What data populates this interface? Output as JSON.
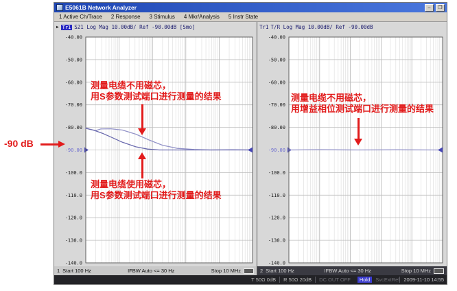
{
  "window": {
    "title": "E5061B Network Analyzer",
    "minimize_label": "–",
    "restore_label": "❐"
  },
  "menu": {
    "items": [
      "1 Active Ch/Trace",
      "2 Response",
      "3 Stimulus",
      "4 Mkr/Analysis",
      "5 Instr State"
    ]
  },
  "channels": [
    {
      "header": {
        "marker": "▶",
        "trace": "Tr1",
        "text": "S21 Log Mag 10.00dB/ Ref -90.00dB [Smo]"
      },
      "status": {
        "num": "1",
        "start": "Start 100 Hz",
        "ifbw": "IFBW Auto <= 30 Hz",
        "stop": "Stop 10 MHz"
      }
    },
    {
      "header": {
        "trace": "Tr1",
        "text": "T/R Log Mag 10.00dB/ Ref -90.00dB"
      },
      "status": {
        "num": "2",
        "start": "Start 100 Hz",
        "ifbw": "IFBW Auto <= 30 Hz",
        "stop": "Stop 10 MHz"
      }
    }
  ],
  "status_bar": {
    "t_port": "T 50Ω 0dB",
    "r_port": "R 50Ω 20dB",
    "dc": "DC OUT OFF",
    "hold_badge": "Hold",
    "svc": "Svc",
    "ext_ref": "ExtRef",
    "datetime": "2009-11-10 14:55"
  },
  "annotations": {
    "ref_level_label": "-90 dB",
    "left_top": {
      "line1": "测量电缆不用磁芯，",
      "line2": "用S参数测试端口进行测量的结果"
    },
    "left_bottom": {
      "line1": "测量电缆使用磁芯，",
      "line2": "用S参数测试端口进行测量的结果"
    },
    "right": {
      "line1": "测量电缆不用磁芯，",
      "line2": "用增益相位测试端口进行测量的结果"
    }
  },
  "colors": {
    "annotation_red": "#e21b1b",
    "titlebar_blue": "#2850c8",
    "trace_light": "#9393c8",
    "trace_dark": "#6a6aae",
    "ref_label_blue": "#6b6bd0",
    "ref_marker_blue": "#4646b4",
    "hold_badge_blue": "#3d3dd0"
  },
  "chart_data": [
    {
      "type": "line",
      "x_scale": "log",
      "x_start_hz": 100,
      "x_stop_hz": 10000000,
      "x_decades": 5,
      "ylim": [
        -140,
        -40
      ],
      "ylabel_unit": "dB",
      "y_ticks": [
        "-40.00",
        "-50.00",
        "-60.00",
        "-70.00",
        "-80.00",
        "-90.00",
        "-100.0",
        "-110.0",
        "-120.0",
        "-130.0",
        "-140.0"
      ],
      "ref_level_db": -90,
      "grid": true,
      "series": [
        {
          "name": "测量电缆不用磁芯 (S参数测试端口)",
          "points": [
            [
              0,
              -80.3
            ],
            [
              0.03,
              -80.9
            ],
            [
              0.06,
              -81.4
            ],
            [
              0.09,
              -80.7
            ],
            [
              0.15,
              -80.6
            ],
            [
              0.22,
              -81.2
            ],
            [
              0.3,
              -83.0
            ],
            [
              0.38,
              -85.6
            ],
            [
              0.46,
              -87.9
            ],
            [
              0.55,
              -89.3
            ],
            [
              0.65,
              -89.8
            ],
            [
              0.75,
              -90.0
            ],
            [
              0.88,
              -89.9
            ],
            [
              1,
              -90.0
            ]
          ]
        },
        {
          "name": "测量电缆使用磁芯 (S参数测试端口)",
          "points": [
            [
              0,
              -80.4
            ],
            [
              0.05,
              -81.3
            ],
            [
              0.1,
              -82.6
            ],
            [
              0.16,
              -84.6
            ],
            [
              0.22,
              -86.6
            ],
            [
              0.3,
              -88.6
            ],
            [
              0.37,
              -89.6
            ],
            [
              0.44,
              -90.0
            ],
            [
              0.7,
              -90.0
            ],
            [
              1,
              -90.0
            ]
          ]
        }
      ]
    },
    {
      "type": "line",
      "x_scale": "log",
      "x_start_hz": 100,
      "x_stop_hz": 10000000,
      "x_decades": 5,
      "ylim": [
        -140,
        -40
      ],
      "ylabel_unit": "dB",
      "y_ticks": [
        "-40.00",
        "-50.00",
        "-60.00",
        "-70.00",
        "-80.00",
        "-90.00",
        "-100.0",
        "-110.0",
        "-120.0",
        "-130.0",
        "-140.0"
      ],
      "ref_level_db": -90,
      "grid": true,
      "series": [
        {
          "name": "测量电缆不用磁芯 (增益相位测试端口)",
          "points": [
            [
              0,
              -90.0
            ],
            [
              0.2,
              -89.9
            ],
            [
              0.45,
              -90.0
            ],
            [
              0.7,
              -89.95
            ],
            [
              1,
              -90.0
            ]
          ]
        }
      ]
    }
  ]
}
